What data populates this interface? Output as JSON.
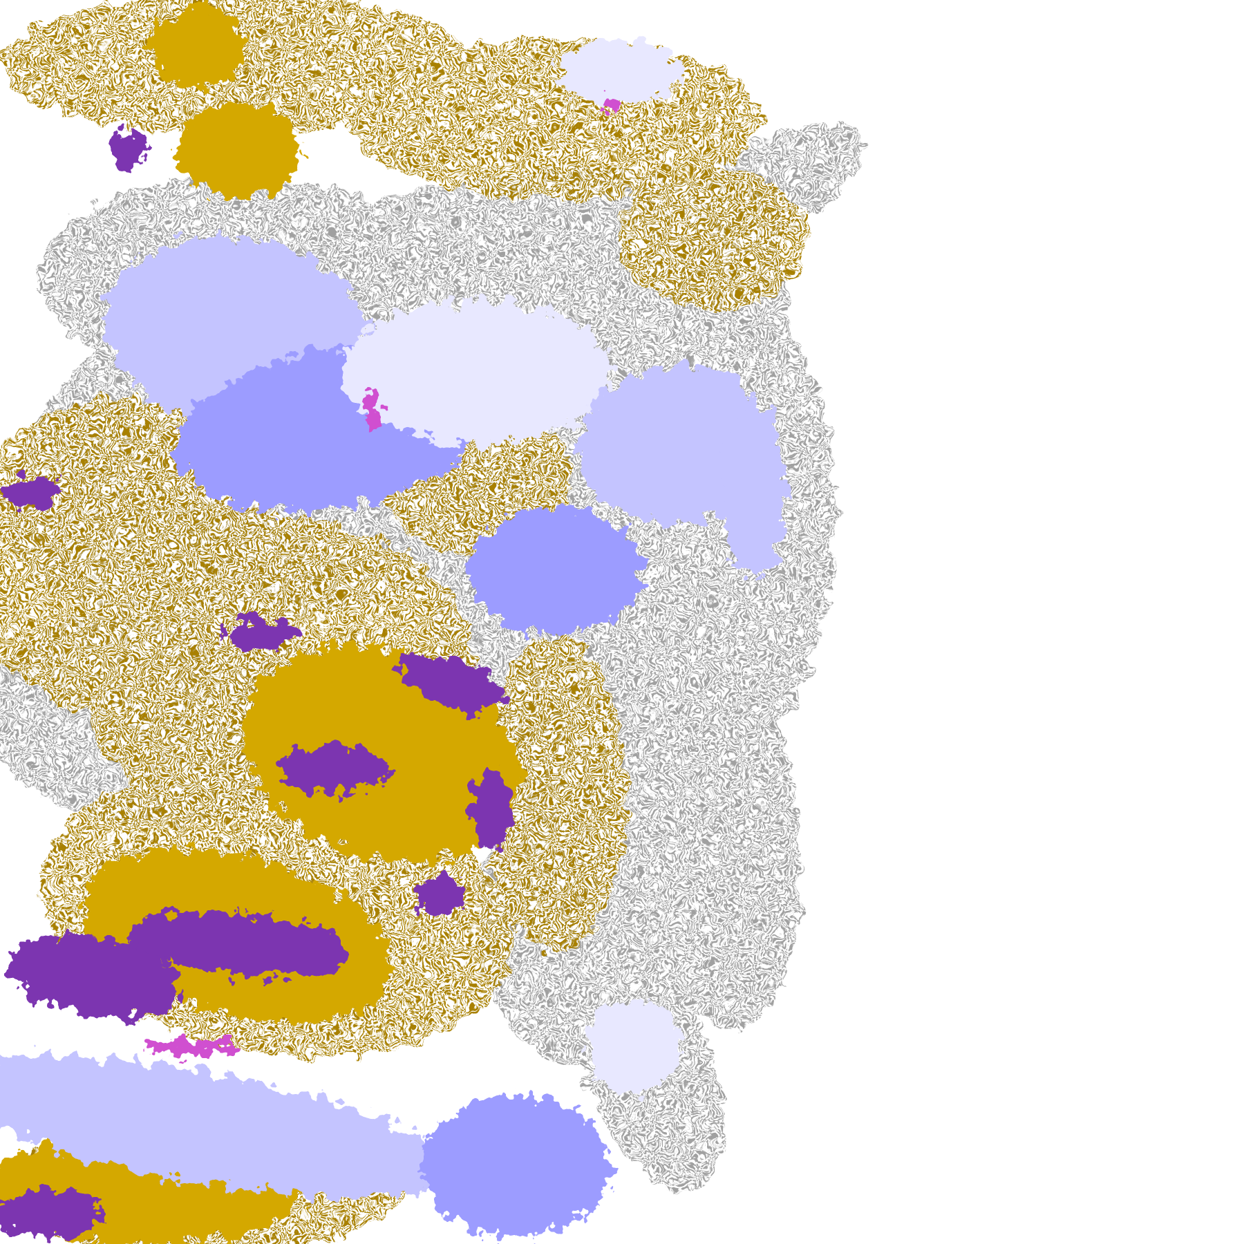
{
  "map": {
    "type": "classified raster tile",
    "background": "#ffffff",
    "palette": {
      "gold": "#d4a800",
      "dark_gold": "#a88000",
      "purple": "#7b35b0",
      "grey": "#a0a0a0",
      "dark_grey": "#888888",
      "lavender": "#c4c4ff",
      "periwinkle": "#9c9cff",
      "pale_lavender": "#e8e8ff",
      "magenta": "#d050d0"
    }
  }
}
